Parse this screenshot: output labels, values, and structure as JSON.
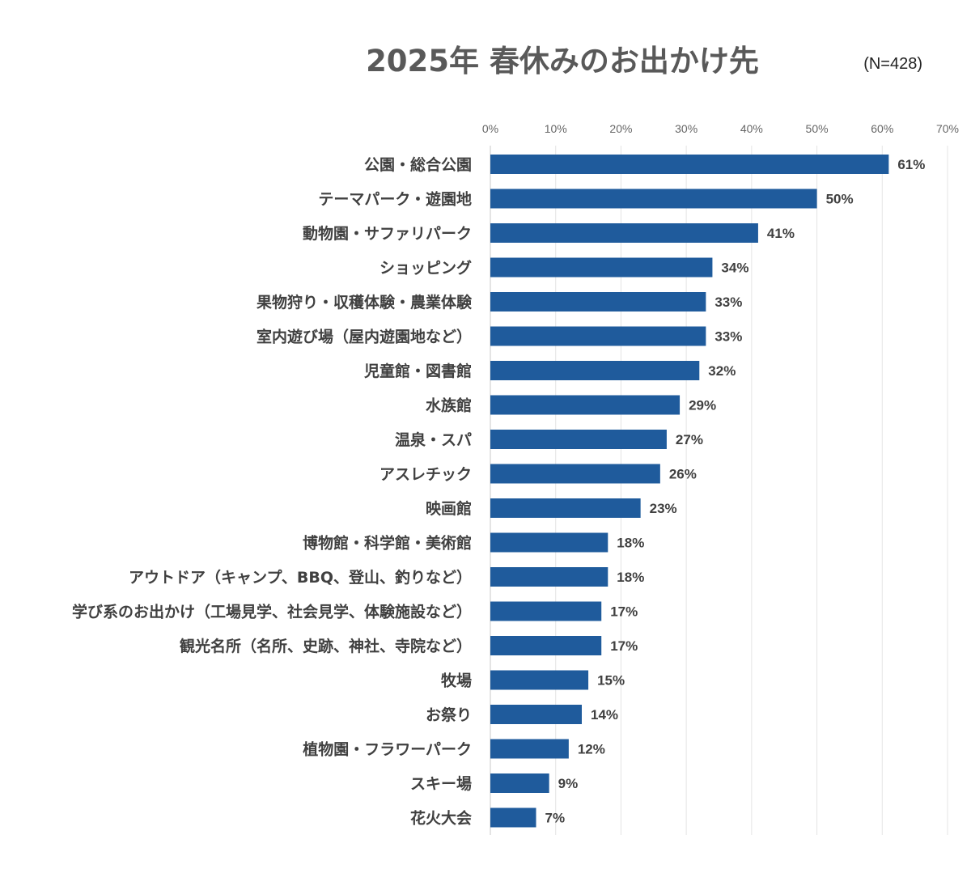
{
  "chart_data": {
    "type": "bar",
    "orientation": "horizontal",
    "title": "2025年 春休みのお出かけ先",
    "sample_size": "(N=428)",
    "categories": [
      "公園・総合公園",
      "テーマパーク・遊園地",
      "動物園・サファリパーク",
      "ショッピング",
      "果物狩り・収穫体験・農業体験",
      "室内遊び場（屋内遊園地など）",
      "児童館・図書館",
      "水族館",
      "温泉・スパ",
      "アスレチック",
      "映画館",
      "博物館・科学館・美術館",
      "アウトドア（キャンプ、BBQ、登山、釣りなど）",
      "学び系のお出かけ（工場見学、社会見学、体験施設など）",
      "観光名所（名所、史跡、神社、寺院など）",
      "牧場",
      "お祭り",
      "植物園・フラワーパーク",
      "スキー場",
      "花火大会"
    ],
    "values": [
      61,
      50,
      41,
      34,
      33,
      33,
      32,
      29,
      27,
      26,
      23,
      18,
      18,
      17,
      17,
      15,
      14,
      12,
      9,
      7
    ],
    "value_labels": [
      "61%",
      "50%",
      "41%",
      "34%",
      "33%",
      "33%",
      "32%",
      "29%",
      "27%",
      "26%",
      "23%",
      "18%",
      "18%",
      "17%",
      "17%",
      "15%",
      "14%",
      "12%",
      "9%",
      "7%"
    ],
    "xlim": [
      0,
      70
    ],
    "x_ticks": [
      0,
      10,
      20,
      30,
      40,
      50,
      60,
      70
    ],
    "x_tick_labels": [
      "0%",
      "10%",
      "20%",
      "30%",
      "40%",
      "50%",
      "60%",
      "70%"
    ],
    "x_axis_position": "top",
    "grid": true,
    "legend": "none",
    "bar_color": "#1f5b9c"
  }
}
